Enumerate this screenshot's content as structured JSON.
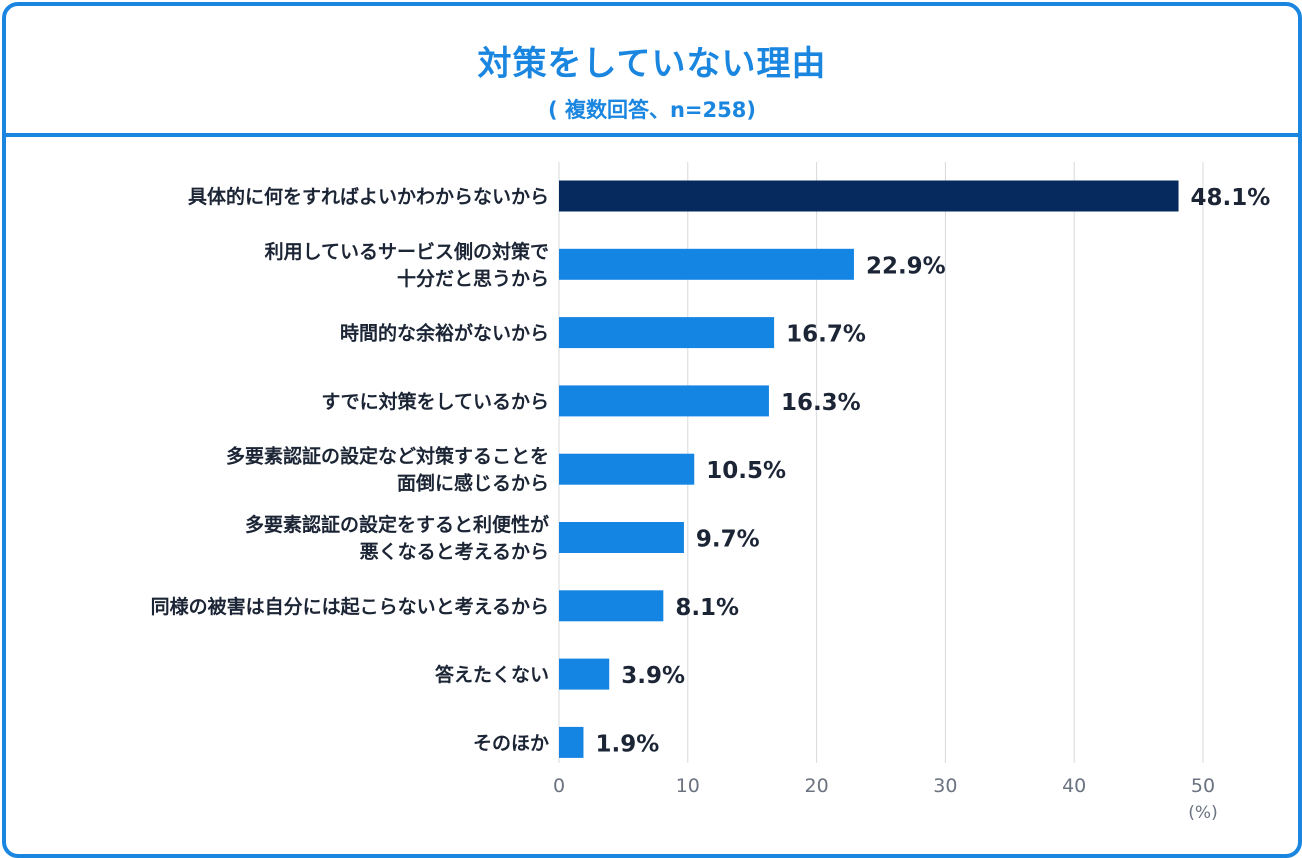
{
  "colors": {
    "accent": "#1a86e0",
    "bar": "#1585e3",
    "bar_highlight": "#062a5e",
    "text": "#1c2535",
    "grid": "#d6d9dd"
  },
  "chart_data": {
    "type": "bar",
    "orientation": "horizontal",
    "title": "対策をしていない理由",
    "subtitle": "( 複数回答、n=258)",
    "categories": [
      [
        "具体的に何をすればよいかわからないから"
      ],
      [
        "利用しているサービス側の対策で",
        "十分だと思うから"
      ],
      [
        "時間的な余裕がないから"
      ],
      [
        "すでに対策をしているから"
      ],
      [
        "多要素認証の設定など対策することを",
        "面倒に感じるから"
      ],
      [
        "多要素認証の設定をすると利便性が",
        "悪くなると考えるから"
      ],
      [
        "同様の被害は自分には起こらないと考えるから"
      ],
      [
        "答えたくない"
      ],
      [
        "そのほか"
      ]
    ],
    "values": [
      48.1,
      22.9,
      16.7,
      16.3,
      10.5,
      9.7,
      8.1,
      3.9,
      1.9
    ],
    "value_labels": [
      "48.1%",
      "22.9%",
      "16.7%",
      "16.3%",
      "10.5%",
      "9.7%",
      "8.1%",
      "3.9%",
      "1.9%"
    ],
    "highlight_index": 0,
    "xlim": [
      0,
      50
    ],
    "xticks": [
      0,
      10,
      20,
      30,
      40,
      50
    ],
    "xunit": "(%)",
    "grid": true
  }
}
